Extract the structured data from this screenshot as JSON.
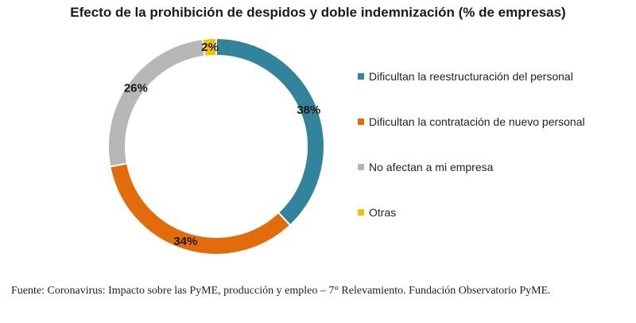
{
  "chart_data": {
    "type": "pie",
    "title": "Efecto de la prohibición de despidos y doble indemnización (% de empresas)",
    "categories": [
      "Dificultan la reestructuración del personal",
      "Dificultan la contratación de nuevo personal",
      "No afectan a mi empresa",
      "Otras"
    ],
    "values": [
      38,
      34,
      26,
      2
    ],
    "labels": [
      "38%",
      "34%",
      "26%",
      "2%"
    ],
    "colors": [
      "#31849b",
      "#e36c0a",
      "#b7b7b7",
      "#f5c200"
    ],
    "donut": true,
    "legend_position": "right"
  },
  "source": "Fuente: Coronavirus: Impacto sobre las PyME, producción y empleo – 7° Relevamiento. Fundación Observatorio PyME."
}
